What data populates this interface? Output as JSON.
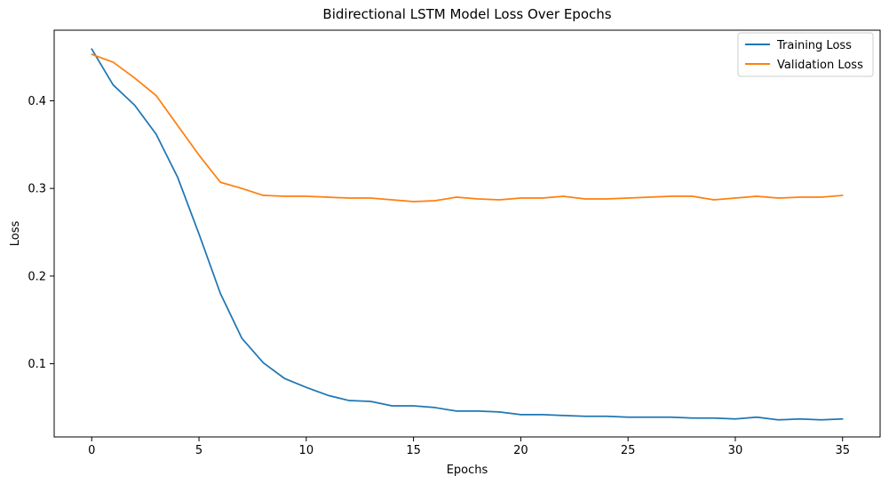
{
  "chart_data": {
    "type": "line",
    "title": "Bidirectional LSTM Model Loss Over Epochs",
    "xlabel": "Epochs",
    "ylabel": "Loss",
    "xlim": [
      -1.75,
      36.75
    ],
    "ylim": [
      0.0165,
      0.4805
    ],
    "xticks": [
      0,
      5,
      10,
      15,
      20,
      25,
      30,
      35
    ],
    "yticks": [
      0.1,
      0.2,
      0.3,
      0.4
    ],
    "ytick_labels": [
      "0.1",
      "0.2",
      "0.3",
      "0.4"
    ],
    "grid": false,
    "legend_position": "top-right",
    "x": [
      0,
      1,
      2,
      3,
      4,
      5,
      6,
      7,
      8,
      9,
      10,
      11,
      12,
      13,
      14,
      15,
      16,
      17,
      18,
      19,
      20,
      21,
      22,
      23,
      24,
      25,
      26,
      27,
      28,
      29,
      30,
      31,
      32,
      33,
      34,
      35
    ],
    "series": [
      {
        "name": "Training Loss",
        "color": "#1f77b4",
        "values": [
          0.459,
          0.418,
          0.395,
          0.362,
          0.313,
          0.248,
          0.18,
          0.129,
          0.101,
          0.083,
          0.073,
          0.064,
          0.058,
          0.057,
          0.052,
          0.052,
          0.05,
          0.046,
          0.046,
          0.045,
          0.042,
          0.042,
          0.041,
          0.04,
          0.04,
          0.039,
          0.039,
          0.039,
          0.038,
          0.038,
          0.037,
          0.039,
          0.036,
          0.037,
          0.036,
          0.037
        ]
      },
      {
        "name": "Validation Loss",
        "color": "#ff7f0e",
        "values": [
          0.453,
          0.444,
          0.426,
          0.406,
          0.372,
          0.338,
          0.307,
          0.3,
          0.292,
          0.291,
          0.291,
          0.29,
          0.289,
          0.289,
          0.287,
          0.285,
          0.286,
          0.29,
          0.288,
          0.287,
          0.289,
          0.289,
          0.291,
          0.288,
          0.288,
          0.289,
          0.29,
          0.291,
          0.291,
          0.287,
          0.289,
          0.291,
          0.289,
          0.29,
          0.29,
          0.292
        ]
      }
    ]
  }
}
